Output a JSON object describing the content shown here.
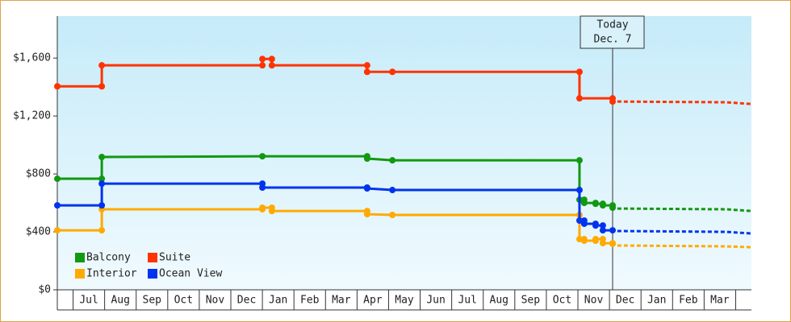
{
  "chart_data": {
    "type": "line",
    "ylim": [
      0,
      1890
    ],
    "yticks": [
      {
        "value": 0,
        "label": "$0"
      },
      {
        "value": 400,
        "label": "$400"
      },
      {
        "value": 800,
        "label": "$800"
      },
      {
        "value": 1200,
        "label": "$1,200"
      },
      {
        "value": 1600,
        "label": "$1,600"
      }
    ],
    "xlim": [
      0,
      22
    ],
    "xticks": [
      {
        "value": 1,
        "label": "Jul"
      },
      {
        "value": 2,
        "label": "Aug"
      },
      {
        "value": 3,
        "label": "Sep"
      },
      {
        "value": 4,
        "label": "Oct"
      },
      {
        "value": 5,
        "label": "Nov"
      },
      {
        "value": 6,
        "label": "Dec"
      },
      {
        "value": 7,
        "label": "Jan"
      },
      {
        "value": 8,
        "label": "Feb"
      },
      {
        "value": 9,
        "label": "Mar"
      },
      {
        "value": 10,
        "label": "Apr"
      },
      {
        "value": 11,
        "label": "May"
      },
      {
        "value": 12,
        "label": "Jun"
      },
      {
        "value": 13,
        "label": "Jul"
      },
      {
        "value": 14,
        "label": "Aug"
      },
      {
        "value": 15,
        "label": "Sep"
      },
      {
        "value": 16,
        "label": "Oct"
      },
      {
        "value": 17,
        "label": "Nov"
      },
      {
        "value": 18,
        "label": "Dec"
      },
      {
        "value": 19,
        "label": "Jan"
      },
      {
        "value": 20,
        "label": "Feb"
      },
      {
        "value": 21,
        "label": "Mar"
      }
    ],
    "annotation": {
      "x": 17.6,
      "lines": [
        "Today",
        "Dec. 7"
      ]
    },
    "series": [
      {
        "name": "Balcony",
        "color": "#119911",
        "x": [
          0,
          1.41,
          1.41,
          6.5,
          9.82,
          9.82,
          10.62,
          16.55,
          16.55,
          16.7,
          16.7,
          17.06,
          17.06,
          17.29,
          17.29,
          17.6,
          17.6
        ],
        "values": [
          767,
          767,
          917,
          922,
          922,
          906,
          894,
          894,
          622,
          622,
          600,
          600,
          594,
          594,
          583,
          583,
          567
        ],
        "forecast_x": [
          17.75,
          21.2,
          22
        ],
        "forecast_values": [
          561,
          556,
          544
        ]
      },
      {
        "name": "Suite",
        "color": "#ff3300",
        "x": [
          0,
          1.41,
          1.41,
          6.5,
          6.5,
          6.8,
          6.8,
          9.82,
          9.82,
          10.62,
          16.55,
          16.55,
          17.6,
          17.6
        ],
        "values": [
          1405,
          1405,
          1550,
          1550,
          1594,
          1594,
          1550,
          1550,
          1505,
          1505,
          1505,
          1322,
          1322,
          1300
        ],
        "forecast_x": [
          17.75,
          21.2,
          22
        ],
        "forecast_values": [
          1300,
          1295,
          1283
        ]
      },
      {
        "name": "Interior",
        "color": "#ffaa00",
        "x": [
          0,
          1.41,
          1.41,
          6.5,
          6.5,
          6.8,
          6.8,
          9.82,
          9.82,
          10.62,
          16.55,
          16.55,
          16.7,
          16.7,
          17.06,
          17.06,
          17.29,
          17.29,
          17.6,
          17.6
        ],
        "values": [
          411,
          411,
          556,
          556,
          567,
          567,
          544,
          544,
          522,
          517,
          517,
          350,
          350,
          339,
          339,
          350,
          350,
          322,
          322,
          317
        ],
        "forecast_x": [
          17.75,
          21.2,
          22
        ],
        "forecast_values": [
          306,
          300,
          294
        ]
      },
      {
        "name": "Ocean View",
        "color": "#0033ee",
        "x": [
          0,
          1.41,
          1.41,
          6.5,
          6.5,
          9.82,
          9.82,
          10.62,
          16.55,
          16.55,
          16.7,
          16.7,
          17.06,
          17.06,
          17.29,
          17.29,
          17.6
        ],
        "values": [
          583,
          583,
          733,
          733,
          706,
          706,
          700,
          689,
          689,
          478,
          478,
          456,
          456,
          444,
          444,
          411,
          411
        ],
        "forecast_x": [
          17.75,
          21.2,
          22
        ],
        "forecast_values": [
          406,
          400,
          389
        ]
      }
    ]
  }
}
